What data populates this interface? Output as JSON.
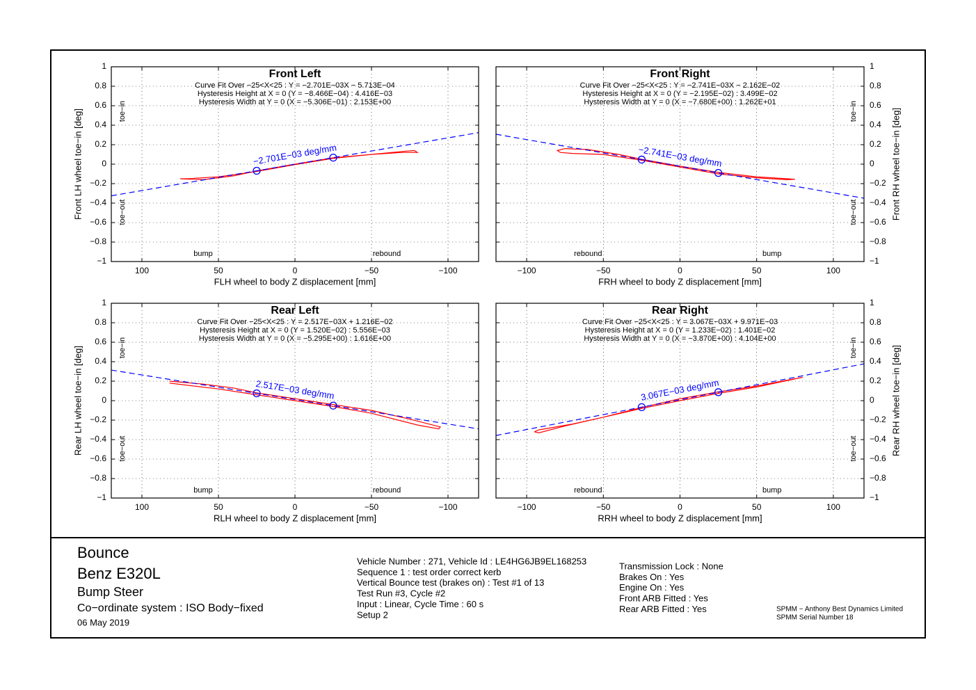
{
  "chart_data": [
    {
      "type": "line",
      "title": "Front Left",
      "fit_lines": [
        "Curve Fit Over −25<X<25 : Y = −2.701E−03X − 5.713E−04",
        "Hysteresis Height at X = 0 (Y = −8.466E−04) : 4.416E−03",
        "Hysteresis Width at Y = 0 (X = −5.306E−01) : 2.153E+00"
      ],
      "slope_label": "−2.701E−03 deg/mm",
      "xlabel": "FLH wheel to body Z displacement [mm]",
      "ylabel": "Front LH wheel toe−in [deg]",
      "y_axis_side": "left",
      "region_labels": {
        "toe_in": "toe−in",
        "toe_out": "toe−out",
        "bump": "bump",
        "rebound": "rebound"
      },
      "xlim": [
        120,
        -120
      ],
      "ylim": [
        -1,
        1
      ],
      "grid": true,
      "xticks": [
        100,
        50,
        0,
        {
          "value": -50,
          "label": "−50"
        },
        {
          "value": -100,
          "label": "−100"
        }
      ],
      "yticks": [
        {
          "value": -1,
          "label": "−1"
        },
        {
          "value": -0.8,
          "label": "−0.8"
        },
        {
          "value": -0.6,
          "label": "−0.6"
        },
        {
          "value": -0.4,
          "label": "−0.4"
        },
        {
          "value": -0.2,
          "label": "−0.2"
        },
        0,
        0.2,
        0.4,
        0.6,
        0.8,
        1
      ],
      "series": [
        {
          "color": "#ff0000",
          "style": "solid",
          "x": [
            75,
            60,
            40,
            25,
            0,
            -25,
            -50,
            -70,
            -78,
            -80,
            -70,
            -50,
            -25,
            0,
            25,
            50,
            70,
            75
          ],
          "values": [
            -0.15,
            -0.16,
            -0.12,
            -0.07,
            0.0,
            0.065,
            0.1,
            0.13,
            0.14,
            0.12,
            0.12,
            0.1,
            0.06,
            -0.005,
            -0.075,
            -0.13,
            -0.15,
            -0.15
          ]
        },
        {
          "color": "#0000ff",
          "style": "dashed",
          "x": [
            120,
            -120
          ],
          "values": [
            -0.325,
            0.324
          ]
        },
        {
          "color": "#0000ff",
          "style": "marker",
          "x": [
            25,
            -25
          ],
          "values": [
            -0.068,
            0.067
          ]
        }
      ]
    },
    {
      "type": "line",
      "title": "Front Right",
      "fit_lines": [
        "Curve Fit Over −25<X<25 : Y = −2.741E−03X − 2.162E−02",
        "Hysteresis Height at X = 0 (Y = −2.195E−02) : 3.499E−02",
        "Hysteresis Width at Y = 0 (X = −7.680E+00) : 1.262E+01"
      ],
      "slope_label": "−2.741E−03 deg/mm",
      "xlabel": "FRH wheel to body Z displacement [mm]",
      "ylabel": "Front RH wheel toe−in [deg]",
      "y_axis_side": "right",
      "region_labels": {
        "toe_in": "toe−in",
        "toe_out": "toe−out",
        "bump": "bump",
        "rebound": "rebound"
      },
      "xlim": [
        -120,
        120
      ],
      "ylim": [
        -1,
        1
      ],
      "grid": true,
      "xticks": [
        {
          "value": -100,
          "label": "−100"
        },
        {
          "value": -50,
          "label": "−50"
        },
        0,
        50,
        100
      ],
      "yticks": [
        {
          "value": -1,
          "label": "−1"
        },
        {
          "value": -0.8,
          "label": "−0.8"
        },
        {
          "value": -0.6,
          "label": "−0.6"
        },
        {
          "value": -0.4,
          "label": "−0.4"
        },
        {
          "value": -0.2,
          "label": "−0.2"
        },
        0,
        0.2,
        0.4,
        0.6,
        0.8,
        1
      ],
      "series": [
        {
          "color": "#ff0000",
          "style": "solid",
          "x": [
            -75,
            -60,
            -40,
            -25,
            0,
            25,
            50,
            70,
            75,
            70,
            50,
            25,
            0,
            -25,
            -50,
            -70,
            -78,
            -80,
            -75
          ],
          "values": [
            0.16,
            0.15,
            0.1,
            0.05,
            -0.02,
            -0.085,
            -0.13,
            -0.15,
            -0.155,
            -0.16,
            -0.14,
            -0.1,
            -0.03,
            0.04,
            0.1,
            0.11,
            0.12,
            0.14,
            0.16
          ]
        },
        {
          "color": "#0000ff",
          "style": "dashed",
          "x": [
            -120,
            120
          ],
          "values": [
            0.307,
            -0.35
          ]
        },
        {
          "color": "#0000ff",
          "style": "marker",
          "x": [
            -25,
            25
          ],
          "values": [
            0.047,
            -0.09
          ]
        }
      ]
    },
    {
      "type": "line",
      "title": "Rear Left",
      "fit_lines": [
        "Curve Fit Over −25<X<25 : Y = 2.517E−03X + 1.216E−02",
        "Hysteresis Height at X = 0 (Y = 1.520E−02) : 5.556E−03",
        "Hysteresis Width at Y = 0 (X = −5.295E+00) : 1.616E+00"
      ],
      "slope_label": "2.517E−03 deg/mm",
      "xlabel": "RLH wheel to body Z displacement [mm]",
      "ylabel": "Rear LH wheel toe−in [deg]",
      "y_axis_side": "left",
      "region_labels": {
        "toe_in": "toe−in",
        "toe_out": "toe−out",
        "bump": "bump",
        "rebound": "rebound"
      },
      "xlim": [
        120,
        -120
      ],
      "ylim": [
        -1,
        1
      ],
      "grid": true,
      "xticks": [
        100,
        50,
        0,
        {
          "value": -50,
          "label": "−50"
        },
        {
          "value": -100,
          "label": "−100"
        }
      ],
      "yticks": [
        {
          "value": -1,
          "label": "−1"
        },
        {
          "value": -0.8,
          "label": "−0.8"
        },
        {
          "value": -0.6,
          "label": "−0.6"
        },
        {
          "value": -0.4,
          "label": "−0.4"
        },
        {
          "value": -0.2,
          "label": "−0.2"
        },
        0,
        0.2,
        0.4,
        0.6,
        0.8,
        1
      ],
      "series": [
        {
          "color": "#ff0000",
          "style": "solid",
          "x": [
            82,
            60,
            40,
            25,
            0,
            -25,
            -50,
            -75,
            -95,
            -94,
            -80,
            -50,
            -25,
            0,
            25,
            50,
            82
          ],
          "values": [
            0.2,
            0.17,
            0.13,
            0.08,
            0.02,
            -0.04,
            -0.1,
            -0.19,
            -0.27,
            -0.29,
            -0.25,
            -0.13,
            -0.06,
            0.0,
            0.06,
            0.12,
            0.18
          ]
        },
        {
          "color": "#0000ff",
          "style": "dashed",
          "x": [
            120,
            -120
          ],
          "values": [
            0.314,
            -0.29
          ]
        },
        {
          "color": "#0000ff",
          "style": "marker",
          "x": [
            25,
            -25
          ],
          "values": [
            0.075,
            -0.051
          ]
        }
      ]
    },
    {
      "type": "line",
      "title": "Rear Right",
      "fit_lines": [
        "Curve Fit Over −25<X<25 : Y = 3.067E−03X + 9.971E−03",
        "Hysteresis Height at X = 0 (Y = 1.233E−02) : 1.401E−02",
        "Hysteresis Width at Y = 0 (X = −3.870E+00) : 4.104E+00"
      ],
      "slope_label": "3.067E−03 deg/mm",
      "xlabel": "RRH wheel to body Z displacement [mm]",
      "ylabel": "Rear RH wheel toe−in [deg]",
      "y_axis_side": "right",
      "region_labels": {
        "toe_in": "toe−in",
        "toe_out": "toe−out",
        "bump": "bump",
        "rebound": "rebound"
      },
      "xlim": [
        -120,
        120
      ],
      "ylim": [
        -1,
        1
      ],
      "grid": true,
      "xticks": [
        {
          "value": -100,
          "label": "−100"
        },
        {
          "value": -50,
          "label": "−50"
        },
        0,
        50,
        100
      ],
      "yticks": [
        {
          "value": -1,
          "label": "−1"
        },
        {
          "value": -0.8,
          "label": "−0.8"
        },
        {
          "value": -0.6,
          "label": "−0.6"
        },
        {
          "value": -0.4,
          "label": "−0.4"
        },
        {
          "value": -0.2,
          "label": "−0.2"
        },
        0,
        0.2,
        0.4,
        0.6,
        0.8,
        1
      ],
      "series": [
        {
          "color": "#ff0000",
          "style": "solid",
          "x": [
            -95,
            -92,
            -70,
            -50,
            -25,
            0,
            25,
            50,
            80,
            50,
            25,
            0,
            -25,
            -50,
            -75,
            -92,
            -95
          ],
          "values": [
            -0.32,
            -0.3,
            -0.24,
            -0.17,
            -0.07,
            0.02,
            0.09,
            0.15,
            0.24,
            0.14,
            0.075,
            0.0,
            -0.08,
            -0.17,
            -0.26,
            -0.33,
            -0.32
          ]
        },
        {
          "color": "#0000ff",
          "style": "dashed",
          "x": [
            -120,
            120
          ],
          "values": [
            -0.358,
            0.378
          ]
        },
        {
          "color": "#0000ff",
          "style": "marker",
          "x": [
            -25,
            25
          ],
          "values": [
            -0.067,
            0.087
          ]
        }
      ]
    }
  ],
  "footer": {
    "left": [
      "Bounce",
      "Benz E320L",
      "Bump Steer",
      "Co−ordinate system : ISO Body−fixed",
      "06 May 2019"
    ],
    "middle": [
      "Vehicle Number : 271, Vehicle Id : LE4HG6JB9EL168253",
      "Sequence 1 : test order correct kerb",
      "Vertical Bounce test (brakes on) : Test #1 of 13",
      "Test Run #3, Cycle #2",
      "Input : Linear, Cycle Time : 60 s",
      "Setup 2"
    ],
    "right": [
      "Transmission Lock : None",
      "Brakes On : Yes",
      "Engine On : Yes",
      "Front ARB Fitted : Yes",
      "Rear ARB Fitted : Yes"
    ],
    "credits": [
      "SPMM − Anthony Best Dynamics Limited",
      "SPMM Serial Number 18"
    ]
  }
}
